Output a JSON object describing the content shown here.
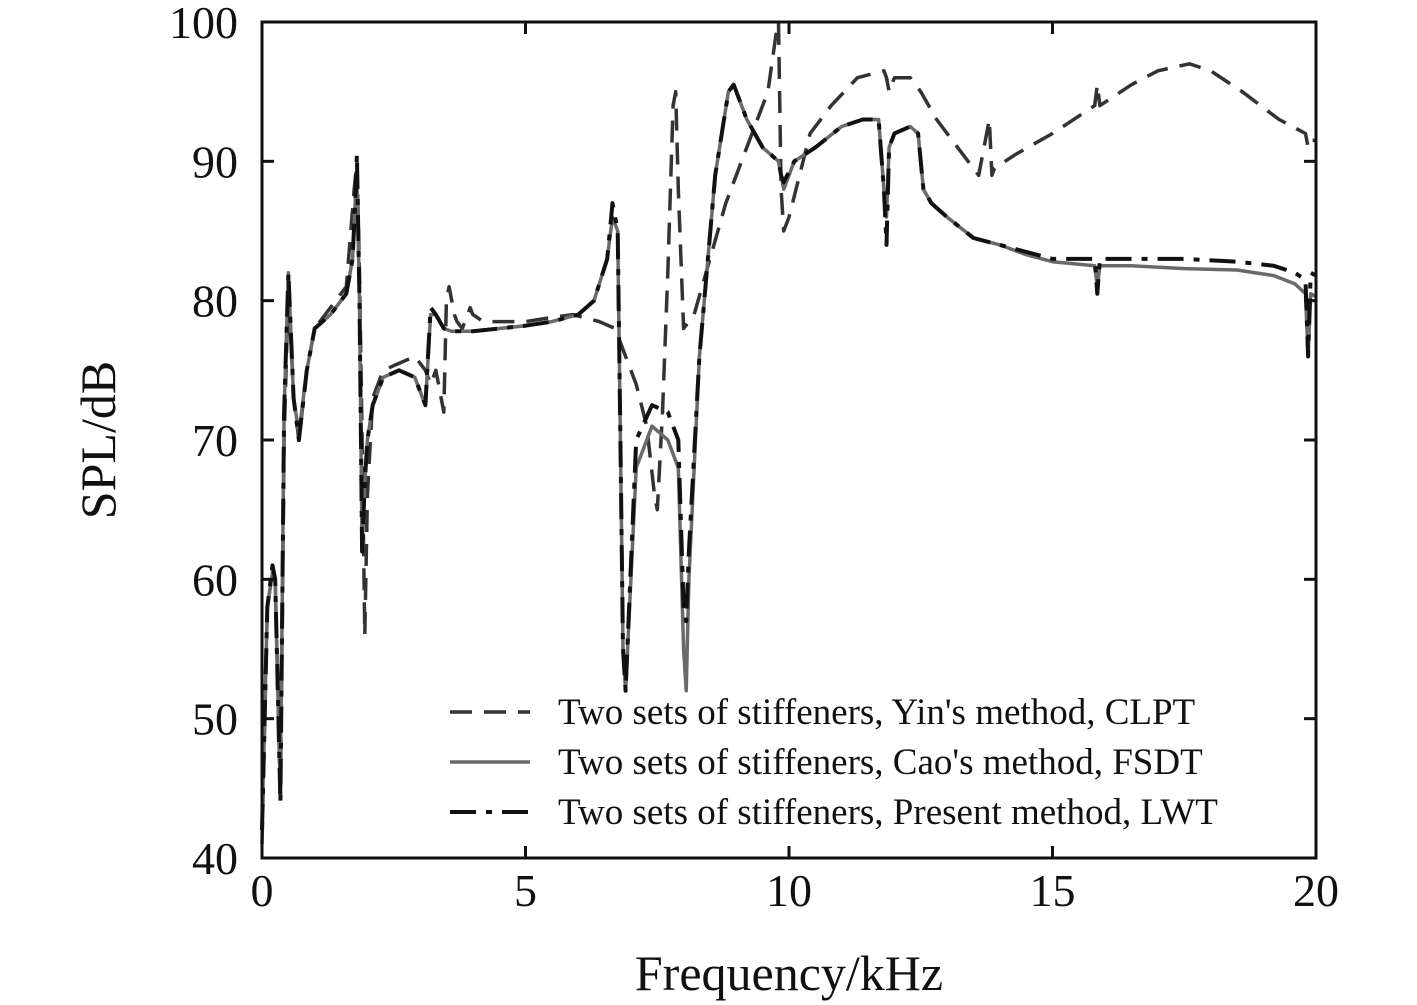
{
  "chart_data": {
    "type": "line",
    "title": "",
    "xlabel": "Frequency/kHz",
    "ylabel": "SPL/dB",
    "xlim": [
      0,
      20
    ],
    "ylim": [
      40,
      100
    ],
    "xticks": [
      0,
      5,
      10,
      15,
      20
    ],
    "yticks": [
      40,
      50,
      60,
      70,
      80,
      90,
      100
    ],
    "xtick_labels": [
      "0",
      "5",
      "10",
      "15",
      "20"
    ],
    "ytick_labels": [
      "40",
      "50",
      "60",
      "70",
      "80",
      "90",
      "100"
    ],
    "grid": false,
    "legend_position": "bottom-right",
    "series": [
      {
        "name": "Two sets of stiffeners, Yin's method, CLPT",
        "style": "dashed",
        "color": "#333333",
        "x": [
          0,
          0.1,
          0.2,
          0.25,
          0.3,
          0.35,
          0.42,
          0.5,
          0.6,
          0.7,
          0.85,
          1.0,
          1.3,
          1.6,
          1.75,
          1.8,
          1.85,
          1.9,
          1.95,
          2.0,
          2.1,
          2.3,
          2.6,
          2.9,
          3.1,
          3.2,
          3.3,
          3.45,
          3.5,
          3.55,
          3.65,
          3.7,
          3.8,
          3.95,
          4.0,
          4.2,
          4.5,
          5.0,
          5.5,
          5.9,
          6.1,
          6.4,
          6.7,
          6.9,
          7.1,
          7.3,
          7.45,
          7.5,
          7.6,
          7.7,
          7.8,
          7.85,
          7.9,
          8.0,
          8.2,
          8.5,
          8.8,
          9.2,
          9.6,
          9.75,
          9.8,
          9.85,
          9.9,
          10.0,
          10.4,
          10.8,
          11.3,
          11.8,
          11.85,
          11.9,
          12.0,
          12.3,
          12.5,
          12.8,
          13.2,
          13.6,
          13.8,
          13.85,
          13.9,
          14.3,
          15.0,
          15.8,
          15.85,
          15.9,
          16.5,
          17.0,
          17.6,
          18.0,
          18.6,
          19.3,
          19.8,
          19.85,
          19.9,
          20.0
        ],
        "y": [
          41,
          58,
          60.5,
          60,
          52,
          44,
          70,
          81,
          73,
          70,
          75,
          78,
          79.5,
          81,
          88,
          90,
          82,
          70,
          56,
          66,
          73,
          75,
          75.5,
          76,
          75,
          74,
          75,
          72,
          80,
          81,
          79,
          78.5,
          78,
          79.5,
          79,
          78.5,
          78.5,
          78.5,
          78.8,
          79,
          78.8,
          78.5,
          78,
          76,
          74,
          71,
          66,
          65,
          72,
          82,
          94,
          95,
          88,
          78,
          79,
          83,
          87,
          91,
          95,
          99,
          100,
          88,
          85,
          86,
          92,
          94,
          96,
          96.5,
          96,
          95,
          96,
          96,
          95,
          93,
          91,
          89,
          93,
          89,
          89.5,
          90.5,
          92,
          94,
          95.5,
          94,
          95.5,
          96.5,
          97,
          96.5,
          95,
          93,
          92,
          91,
          91.5,
          91.5
        ]
      },
      {
        "name": "Two sets of stiffeners, Cao's method, FSDT",
        "style": "solid",
        "color": "#6a6a6a",
        "x": [
          0,
          0.1,
          0.2,
          0.25,
          0.3,
          0.35,
          0.42,
          0.5,
          0.6,
          0.7,
          0.85,
          1.0,
          1.3,
          1.6,
          1.72,
          1.78,
          1.8,
          1.85,
          1.9,
          1.95,
          2.0,
          2.1,
          2.3,
          2.6,
          2.9,
          3.05,
          3.1,
          3.2,
          3.3,
          3.45,
          3.6,
          4.0,
          4.5,
          5.0,
          5.5,
          6.0,
          6.3,
          6.55,
          6.65,
          6.75,
          6.8,
          6.85,
          6.9,
          7.1,
          7.4,
          7.7,
          7.9,
          8.0,
          8.05,
          8.1,
          8.3,
          8.6,
          8.85,
          8.95,
          9.2,
          9.5,
          9.8,
          9.85,
          9.9,
          10.1,
          10.5,
          11.0,
          11.4,
          11.7,
          11.8,
          11.85,
          11.9,
          12.0,
          12.3,
          12.45,
          12.55,
          12.7,
          13.0,
          13.5,
          14.0,
          14.5,
          15.0,
          15.8,
          15.85,
          15.9,
          16.5,
          17.5,
          18.5,
          19.2,
          19.6,
          19.8,
          19.85,
          19.9,
          20.0
        ],
        "y": [
          42,
          58,
          60.5,
          60,
          52,
          45,
          72,
          82,
          73,
          70.5,
          75,
          78,
          79,
          80.5,
          83,
          88,
          89,
          80,
          62,
          67,
          70,
          72.5,
          74.5,
          75,
          74.5,
          73,
          72.5,
          79,
          79,
          78,
          77.8,
          77.8,
          78,
          78.2,
          78.5,
          79,
          80,
          83,
          86,
          85,
          70,
          55,
          52,
          68,
          71,
          70,
          68,
          55,
          52,
          60,
          76,
          89,
          95,
          95.5,
          93,
          91,
          90,
          89,
          88,
          90,
          91,
          92.5,
          93,
          93,
          88,
          86,
          91,
          92,
          92.5,
          92,
          88,
          87,
          86,
          84.5,
          84,
          83.3,
          82.8,
          82.5,
          81,
          82.5,
          82.5,
          82.3,
          82.2,
          81.8,
          81.2,
          80.5,
          76,
          80.5,
          80.3
        ]
      },
      {
        "name": "Two sets of stiffeners, Present method, LWT",
        "style": "dashdot",
        "color": "#111111",
        "x": [
          0,
          0.1,
          0.2,
          0.25,
          0.3,
          0.35,
          0.42,
          0.5,
          0.6,
          0.7,
          0.85,
          1.0,
          1.3,
          1.6,
          1.72,
          1.78,
          1.8,
          1.85,
          1.9,
          1.95,
          2.0,
          2.1,
          2.3,
          2.6,
          2.9,
          3.05,
          3.1,
          3.2,
          3.3,
          3.45,
          3.6,
          4.0,
          4.5,
          5.0,
          5.5,
          6.0,
          6.3,
          6.55,
          6.65,
          6.75,
          6.8,
          6.85,
          6.9,
          7.1,
          7.4,
          7.7,
          7.9,
          8.0,
          8.05,
          8.1,
          8.3,
          8.6,
          8.85,
          8.95,
          9.2,
          9.5,
          9.8,
          9.85,
          9.9,
          10.1,
          10.5,
          11.0,
          11.4,
          11.7,
          11.8,
          11.85,
          11.9,
          12.0,
          12.3,
          12.45,
          12.55,
          12.7,
          13.0,
          13.5,
          14.0,
          14.5,
          15.0,
          15.8,
          15.85,
          15.9,
          16.5,
          17.5,
          18.5,
          19.2,
          19.6,
          19.8,
          19.85,
          19.9,
          20.0
        ],
        "y": [
          42,
          58,
          61,
          60,
          52,
          44,
          72,
          82,
          73,
          70,
          75,
          78,
          79,
          80.5,
          83,
          88,
          90.5,
          80,
          62,
          67,
          70,
          72.5,
          74.5,
          75,
          74.5,
          73,
          72.5,
          79.5,
          79,
          78,
          77.8,
          77.8,
          78,
          78.2,
          78.5,
          79,
          80,
          83,
          87,
          85,
          70,
          55,
          52,
          70,
          72.5,
          72,
          70,
          58,
          57,
          62,
          76,
          89,
          95,
          95.5,
          93,
          91,
          90,
          89,
          88.5,
          90,
          91,
          92.5,
          93,
          93,
          88,
          84,
          91,
          92,
          92.5,
          92,
          88,
          87,
          86,
          84.5,
          84,
          83.5,
          83,
          83,
          80.5,
          83,
          83,
          83,
          82.8,
          82.5,
          82,
          81.5,
          76,
          82,
          81.8
        ]
      }
    ]
  }
}
